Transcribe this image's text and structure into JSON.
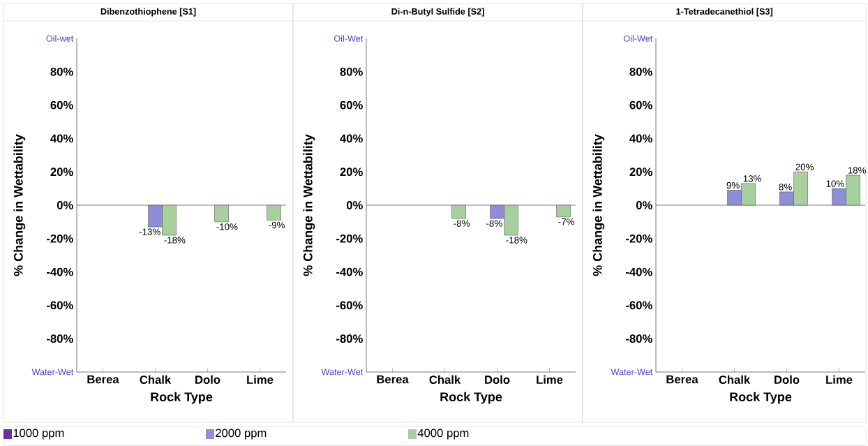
{
  "chart_data": [
    {
      "type": "bar",
      "title": "Dibenzothiophene [S1]",
      "xlabel": "Rock Type",
      "ylabel": "% Change in Wettability",
      "categories": [
        "Berea",
        "Chalk",
        "Dolo",
        "Lime"
      ],
      "ylim": [
        -100,
        100
      ],
      "yticks": [
        {
          "value": -100,
          "label": "Water-Wet"
        },
        {
          "value": -80,
          "label": "-80%"
        },
        {
          "value": -60,
          "label": "-60%"
        },
        {
          "value": -40,
          "label": "-40%"
        },
        {
          "value": -20,
          "label": "-20%"
        },
        {
          "value": 0,
          "label": "0%"
        },
        {
          "value": 20,
          "label": "20%"
        },
        {
          "value": 40,
          "label": "40%"
        },
        {
          "value": 60,
          "label": "60%"
        },
        {
          "value": 80,
          "label": "80%"
        },
        {
          "value": 100,
          "label": "Oil-wet"
        }
      ],
      "legend": "bottom",
      "series": [
        {
          "name": "1000 ppm",
          "color": "#7030a0",
          "values": [
            null,
            null,
            null,
            null
          ]
        },
        {
          "name": "2000 ppm",
          "color": "#8e8ed8",
          "values": [
            null,
            -13,
            null,
            null
          ],
          "value_labels": [
            null,
            "-13%",
            null,
            null
          ]
        },
        {
          "name": "4000 ppm",
          "color": "#a8cf9e",
          "values": [
            null,
            -18,
            -10,
            -9
          ],
          "value_labels": [
            null,
            "-18%",
            "-10%",
            "-9%"
          ]
        }
      ]
    },
    {
      "type": "bar",
      "title": "Di-n-Butyl Sulfide [S2]",
      "xlabel": "Rock Type",
      "ylabel": "% Change in Wettability",
      "categories": [
        "Berea",
        "Chalk",
        "Dolo",
        "Lime"
      ],
      "ylim": [
        -100,
        100
      ],
      "yticks": [
        {
          "value": -100,
          "label": "Water-Wet"
        },
        {
          "value": -80,
          "label": "-80%"
        },
        {
          "value": -60,
          "label": "-60%"
        },
        {
          "value": -40,
          "label": "-40%"
        },
        {
          "value": -20,
          "label": "-20%"
        },
        {
          "value": 0,
          "label": "0%"
        },
        {
          "value": 20,
          "label": "20%"
        },
        {
          "value": 40,
          "label": "40%"
        },
        {
          "value": 60,
          "label": "60%"
        },
        {
          "value": 80,
          "label": "80%"
        },
        {
          "value": 100,
          "label": "Oil-Wet"
        }
      ],
      "series": [
        {
          "color": "#7030a0",
          "values": [
            null,
            null,
            null,
            null
          ]
        },
        {
          "color": "#8e8ed8",
          "values": [
            null,
            null,
            -8,
            null
          ],
          "value_labels": [
            null,
            null,
            "-8%",
            null
          ]
        },
        {
          "color": "#a8cf9e",
          "values": [
            null,
            -8,
            -18,
            -7
          ],
          "value_labels": [
            null,
            "-8%",
            "-18%",
            "-7%"
          ]
        }
      ]
    },
    {
      "type": "bar",
      "title": "1-Tetradecanethiol [S3]",
      "xlabel": "Rock Type",
      "ylabel": "% Change in Wettability",
      "categories": [
        "Berea",
        "Chalk",
        "Dolo",
        "Lime"
      ],
      "ylim": [
        -100,
        100
      ],
      "yticks": [
        {
          "value": -100,
          "label": "Water-Wet"
        },
        {
          "value": -80,
          "label": "-80%"
        },
        {
          "value": -60,
          "label": "-60%"
        },
        {
          "value": -40,
          "label": "-40%"
        },
        {
          "value": -20,
          "label": "-20%"
        },
        {
          "value": 0,
          "label": "0%"
        },
        {
          "value": 20,
          "label": "20%"
        },
        {
          "value": 40,
          "label": "40%"
        },
        {
          "value": 60,
          "label": "60%"
        },
        {
          "value": 80,
          "label": "80%"
        },
        {
          "value": 100,
          "label": "Oil-Wet"
        }
      ],
      "series": [
        {
          "color": "#7030a0",
          "values": [
            null,
            null,
            null,
            null
          ]
        },
        {
          "color": "#8e8ed8",
          "values": [
            null,
            9,
            8,
            10
          ],
          "value_labels": [
            null,
            "9%",
            "8%",
            "10%"
          ]
        },
        {
          "color": "#a8cf9e",
          "values": [
            null,
            13,
            20,
            18
          ],
          "value_labels": [
            null,
            "13%",
            "20%",
            "18%"
          ]
        }
      ]
    }
  ]
}
